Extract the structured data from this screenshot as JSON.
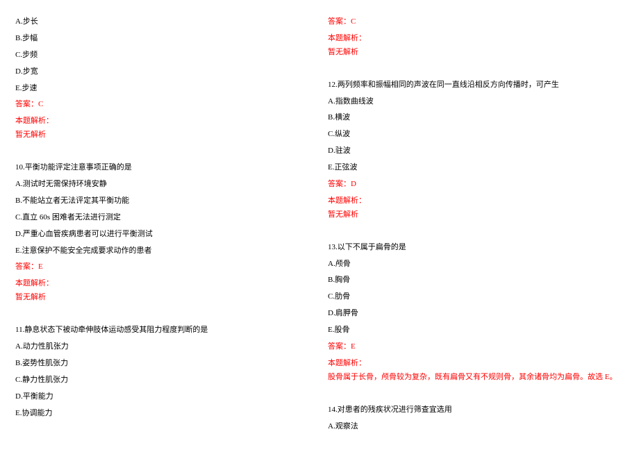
{
  "colors": {
    "text": "#000000",
    "answer": "#ff0000",
    "background": "#ffffff"
  },
  "typography": {
    "fontsize": 11,
    "font_family": "SimSun"
  },
  "left_column": {
    "q9_options": {
      "a": "A.步长",
      "b": "B.步幅",
      "c": "C.步频",
      "d": "D.步宽",
      "e": "E.步速"
    },
    "q9_answer": "答案：C",
    "q9_analysis_label": "本题解析：",
    "q9_analysis_text": "暂无解析",
    "q10": {
      "stem": "10.平衡功能评定注意事项正确的是",
      "a": "A.测试时无需保持环境安静",
      "b": "B.不能站立者无法评定其平衡功能",
      "c": "C.直立 60s 困难者无法进行测定",
      "d": "D.严重心血管疾病患者可以进行平衡测试",
      "e": "E.注意保护不能安全完成要求动作的患者",
      "answer": "答案：E",
      "analysis_label": "本题解析：",
      "analysis_text": "暂无解析"
    },
    "q11": {
      "stem": "11.静息状态下被动牵伸肢体运动感受其阻力程度判断的是",
      "a": "A.动力性肌张力",
      "b": "B.姿势性肌张力",
      "c": "C.静力性肌张力",
      "d": "D.平衡能力",
      "e": "E.协调能力"
    }
  },
  "right_column": {
    "q11_answer": "答案：C",
    "q11_analysis_label": "本题解析：",
    "q11_analysis_text": "暂无解析",
    "q12": {
      "stem": "12.两列频率和振幅相同的声波在同一直线沿相反方向传播时，可产生",
      "a": "A.指数曲线波",
      "b": "B.横波",
      "c": "C.纵波",
      "d": "D.驻波",
      "e": "E.正弦波",
      "answer": "答案：D",
      "analysis_label": "本题解析：",
      "analysis_text": "暂无解析"
    },
    "q13": {
      "stem": "13.以下不属于扁骨的是",
      "a": "A.颅骨",
      "b": "B.胸骨",
      "c": "C.肋骨",
      "d": "D.肩胛骨",
      "e": "E.股骨",
      "answer": "答案：E",
      "analysis_label": "本题解析：",
      "analysis_text": "股骨属于长骨，颅骨较为复杂，既有扁骨又有不规则骨，其余诸骨均为扁骨。故选 E。"
    },
    "q14": {
      "stem": "14.对患者的残疾状况进行筛查宜选用",
      "a": "A.观察法"
    }
  }
}
